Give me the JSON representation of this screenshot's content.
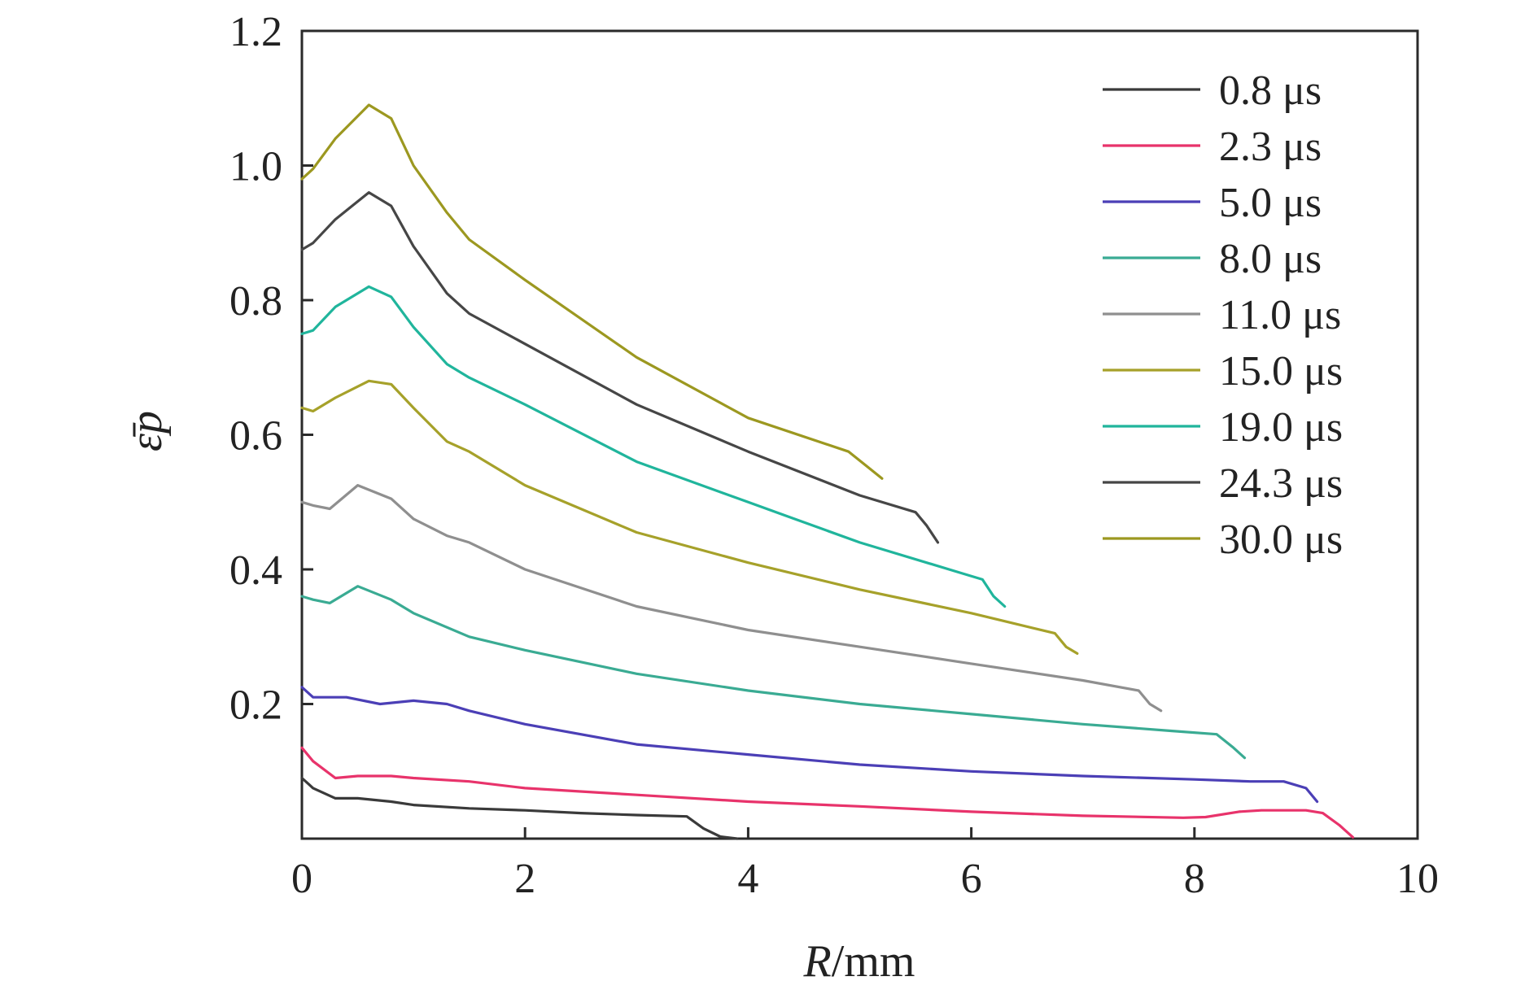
{
  "chart_data": {
    "type": "line",
    "xlabel_italic": "R",
    "xlabel_rest": "/mm",
    "ylabel": "ε̄p",
    "xlim": [
      0,
      10
    ],
    "ylim": [
      0,
      1.2
    ],
    "xticks": [
      0,
      2,
      4,
      6,
      8,
      10
    ],
    "yticks": [
      0.2,
      0.4,
      0.6,
      0.8,
      1.0,
      1.2
    ],
    "ytick_labels": [
      "0.2",
      "0.4",
      "0.6",
      "0.8",
      "1.0",
      "1.2"
    ],
    "xtick_labels": [
      "0",
      "2",
      "4",
      "6",
      "8",
      "10"
    ],
    "grid": false,
    "legend_position": "top-right",
    "series": [
      {
        "name": "0.8 μs",
        "color": "#3a3a3a",
        "x": [
          0,
          0.1,
          0.3,
          0.5,
          0.8,
          1.0,
          1.5,
          2.0,
          2.5,
          3.0,
          3.45,
          3.6,
          3.75,
          3.9
        ],
        "y": [
          0.09,
          0.075,
          0.06,
          0.06,
          0.055,
          0.05,
          0.045,
          0.042,
          0.038,
          0.035,
          0.033,
          0.015,
          0.003,
          0.0
        ]
      },
      {
        "name": "2.3 μs",
        "color": "#e8336b",
        "x": [
          0,
          0.1,
          0.3,
          0.5,
          0.8,
          1.0,
          1.5,
          2.0,
          3.0,
          4.0,
          5.0,
          6.0,
          7.0,
          7.9,
          8.1,
          8.4,
          8.6,
          9.0,
          9.15,
          9.3,
          9.42
        ],
        "y": [
          0.135,
          0.115,
          0.09,
          0.093,
          0.093,
          0.09,
          0.085,
          0.075,
          0.065,
          0.055,
          0.048,
          0.04,
          0.034,
          0.031,
          0.032,
          0.04,
          0.042,
          0.042,
          0.038,
          0.02,
          0.002
        ]
      },
      {
        "name": "5.0 μs",
        "color": "#4b3fb6",
        "x": [
          0,
          0.1,
          0.4,
          0.7,
          1.0,
          1.3,
          1.5,
          2.0,
          3.0,
          4.0,
          5.0,
          6.0,
          7.0,
          8.0,
          8.5,
          8.8,
          9.0,
          9.1
        ],
        "y": [
          0.225,
          0.21,
          0.21,
          0.2,
          0.205,
          0.2,
          0.19,
          0.17,
          0.14,
          0.125,
          0.11,
          0.1,
          0.093,
          0.088,
          0.085,
          0.085,
          0.075,
          0.055
        ]
      },
      {
        "name": "8.0 μs",
        "color": "#3aab93",
        "x": [
          0,
          0.1,
          0.25,
          0.5,
          0.8,
          1.0,
          1.5,
          2.0,
          3.0,
          4.0,
          5.0,
          6.0,
          7.0,
          7.8,
          8.2,
          8.35,
          8.45
        ],
        "y": [
          0.36,
          0.355,
          0.35,
          0.375,
          0.355,
          0.335,
          0.3,
          0.28,
          0.245,
          0.22,
          0.2,
          0.185,
          0.17,
          0.16,
          0.155,
          0.135,
          0.12
        ]
      },
      {
        "name": "11.0 μs",
        "color": "#8f8f8f",
        "x": [
          0,
          0.1,
          0.25,
          0.5,
          0.8,
          1.0,
          1.3,
          1.5,
          2.0,
          3.0,
          4.0,
          5.0,
          6.0,
          7.0,
          7.5,
          7.6,
          7.7
        ],
        "y": [
          0.5,
          0.495,
          0.49,
          0.525,
          0.505,
          0.475,
          0.45,
          0.44,
          0.4,
          0.345,
          0.31,
          0.285,
          0.26,
          0.235,
          0.22,
          0.2,
          0.19
        ]
      },
      {
        "name": "15.0 μs",
        "color": "#a6a12a",
        "x": [
          0,
          0.1,
          0.3,
          0.6,
          0.8,
          1.0,
          1.3,
          1.5,
          2.0,
          3.0,
          4.0,
          5.0,
          6.0,
          6.75,
          6.85,
          6.95
        ],
        "y": [
          0.64,
          0.635,
          0.655,
          0.68,
          0.675,
          0.64,
          0.59,
          0.575,
          0.525,
          0.455,
          0.41,
          0.37,
          0.335,
          0.305,
          0.285,
          0.275
        ]
      },
      {
        "name": "19.0 μs",
        "color": "#20b59c",
        "x": [
          0,
          0.1,
          0.3,
          0.6,
          0.8,
          1.0,
          1.3,
          1.5,
          2.0,
          3.0,
          4.0,
          5.0,
          5.9,
          6.1,
          6.2,
          6.3
        ],
        "y": [
          0.75,
          0.755,
          0.79,
          0.82,
          0.805,
          0.76,
          0.705,
          0.685,
          0.645,
          0.56,
          0.5,
          0.44,
          0.395,
          0.385,
          0.36,
          0.345
        ]
      },
      {
        "name": "24.3 μs",
        "color": "#464646",
        "x": [
          0,
          0.1,
          0.3,
          0.6,
          0.8,
          1.0,
          1.3,
          1.5,
          2.0,
          3.0,
          4.0,
          5.0,
          5.5,
          5.6,
          5.7
        ],
        "y": [
          0.875,
          0.885,
          0.92,
          0.96,
          0.94,
          0.88,
          0.81,
          0.78,
          0.735,
          0.645,
          0.575,
          0.51,
          0.485,
          0.465,
          0.44
        ]
      },
      {
        "name": "30.0 μs",
        "color": "#9c9820",
        "x": [
          0,
          0.1,
          0.3,
          0.6,
          0.8,
          1.0,
          1.3,
          1.5,
          2.0,
          3.0,
          4.0,
          4.9,
          5.05,
          5.2
        ],
        "y": [
          0.98,
          0.995,
          1.04,
          1.09,
          1.07,
          1.0,
          0.93,
          0.89,
          0.83,
          0.715,
          0.625,
          0.575,
          0.555,
          0.535
        ]
      }
    ]
  }
}
